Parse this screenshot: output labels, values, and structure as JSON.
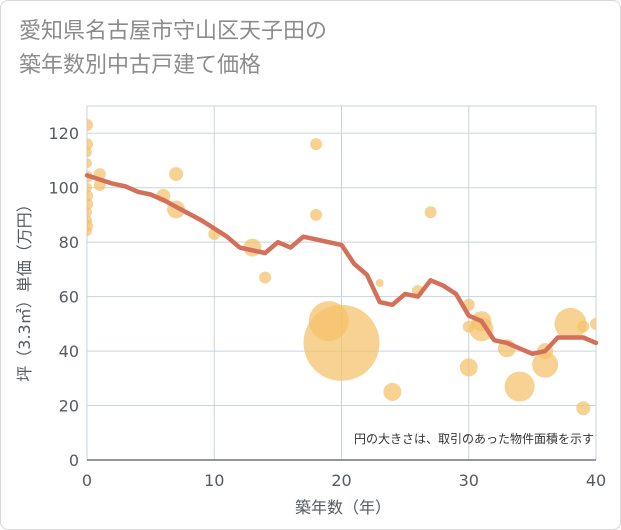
{
  "title": "愛知県名古屋市守山区天子田の\n築年数別中古戸建て価格",
  "chart_data": {
    "type": "scatter",
    "xlabel": "築年数（年）",
    "ylabel": "坪（3.3㎡）単価（万円）",
    "xlim": [
      0,
      40
    ],
    "ylim": [
      0,
      130
    ],
    "xticks": [
      "0",
      "10",
      "20",
      "30",
      "40"
    ],
    "yticks": [
      "0",
      "20",
      "40",
      "60",
      "80",
      "100",
      "120"
    ],
    "grid": true,
    "annotation": "円の大きさは、取引のあった物件面積を示す",
    "colors": {
      "bubble": "#f5c06a",
      "trend": "#d4705a",
      "grid": "#c9d3dd"
    },
    "scatter_points": [
      {
        "x": 0,
        "y": 123,
        "s": 6
      },
      {
        "x": 0,
        "y": 116,
        "s": 6
      },
      {
        "x": 0,
        "y": 113,
        "s": 5
      },
      {
        "x": 0,
        "y": 109,
        "s": 5
      },
      {
        "x": 0,
        "y": 104,
        "s": 6
      },
      {
        "x": 0,
        "y": 100,
        "s": 5
      },
      {
        "x": 0,
        "y": 97,
        "s": 6
      },
      {
        "x": 0,
        "y": 94,
        "s": 6
      },
      {
        "x": 0,
        "y": 91,
        "s": 5
      },
      {
        "x": 0,
        "y": 88,
        "s": 5
      },
      {
        "x": 0,
        "y": 86,
        "s": 6
      },
      {
        "x": 0,
        "y": 84,
        "s": 5
      },
      {
        "x": 1,
        "y": 105,
        "s": 6
      },
      {
        "x": 1,
        "y": 101,
        "s": 6
      },
      {
        "x": 6,
        "y": 97,
        "s": 7
      },
      {
        "x": 7,
        "y": 105,
        "s": 7
      },
      {
        "x": 7,
        "y": 92,
        "s": 9
      },
      {
        "x": 10,
        "y": 83,
        "s": 6
      },
      {
        "x": 13,
        "y": 78,
        "s": 9
      },
      {
        "x": 14,
        "y": 67,
        "s": 6
      },
      {
        "x": 18,
        "y": 116,
        "s": 6
      },
      {
        "x": 18,
        "y": 90,
        "s": 6
      },
      {
        "x": 19,
        "y": 51,
        "s": 20
      },
      {
        "x": 20,
        "y": 43,
        "s": 38
      },
      {
        "x": 23,
        "y": 65,
        "s": 4
      },
      {
        "x": 24,
        "y": 25,
        "s": 9
      },
      {
        "x": 26,
        "y": 62,
        "s": 6
      },
      {
        "x": 27,
        "y": 91,
        "s": 6
      },
      {
        "x": 30,
        "y": 57,
        "s": 6
      },
      {
        "x": 30,
        "y": 49,
        "s": 6
      },
      {
        "x": 30,
        "y": 34,
        "s": 9
      },
      {
        "x": 31,
        "y": 51,
        "s": 10
      },
      {
        "x": 31,
        "y": 48,
        "s": 12
      },
      {
        "x": 33,
        "y": 41,
        "s": 9
      },
      {
        "x": 34,
        "y": 27,
        "s": 15
      },
      {
        "x": 36,
        "y": 40,
        "s": 8
      },
      {
        "x": 36,
        "y": 35,
        "s": 13
      },
      {
        "x": 38,
        "y": 50,
        "s": 16
      },
      {
        "x": 39,
        "y": 49,
        "s": 6
      },
      {
        "x": 39,
        "y": 19,
        "s": 7
      },
      {
        "x": 40,
        "y": 50,
        "s": 6
      }
    ],
    "trend_line": {
      "x": [
        0,
        1,
        2,
        3,
        4,
        5,
        6,
        7,
        8,
        9,
        10,
        11,
        12,
        13,
        14,
        15,
        16,
        17,
        18,
        19,
        20,
        21,
        22,
        23,
        24,
        25,
        26,
        27,
        28,
        29,
        30,
        31,
        32,
        33,
        34,
        35,
        36,
        37,
        38,
        39,
        40
      ],
      "y": [
        104.5,
        103,
        101.5,
        100.5,
        98.5,
        97.5,
        95.5,
        93,
        90.5,
        88,
        85,
        82,
        78,
        77,
        76,
        80,
        78,
        82,
        81,
        80,
        79,
        72,
        68,
        58,
        57,
        61,
        60,
        66,
        64,
        61,
        53,
        51,
        44,
        43,
        41,
        39,
        40,
        45,
        45,
        45,
        43
      ]
    }
  }
}
